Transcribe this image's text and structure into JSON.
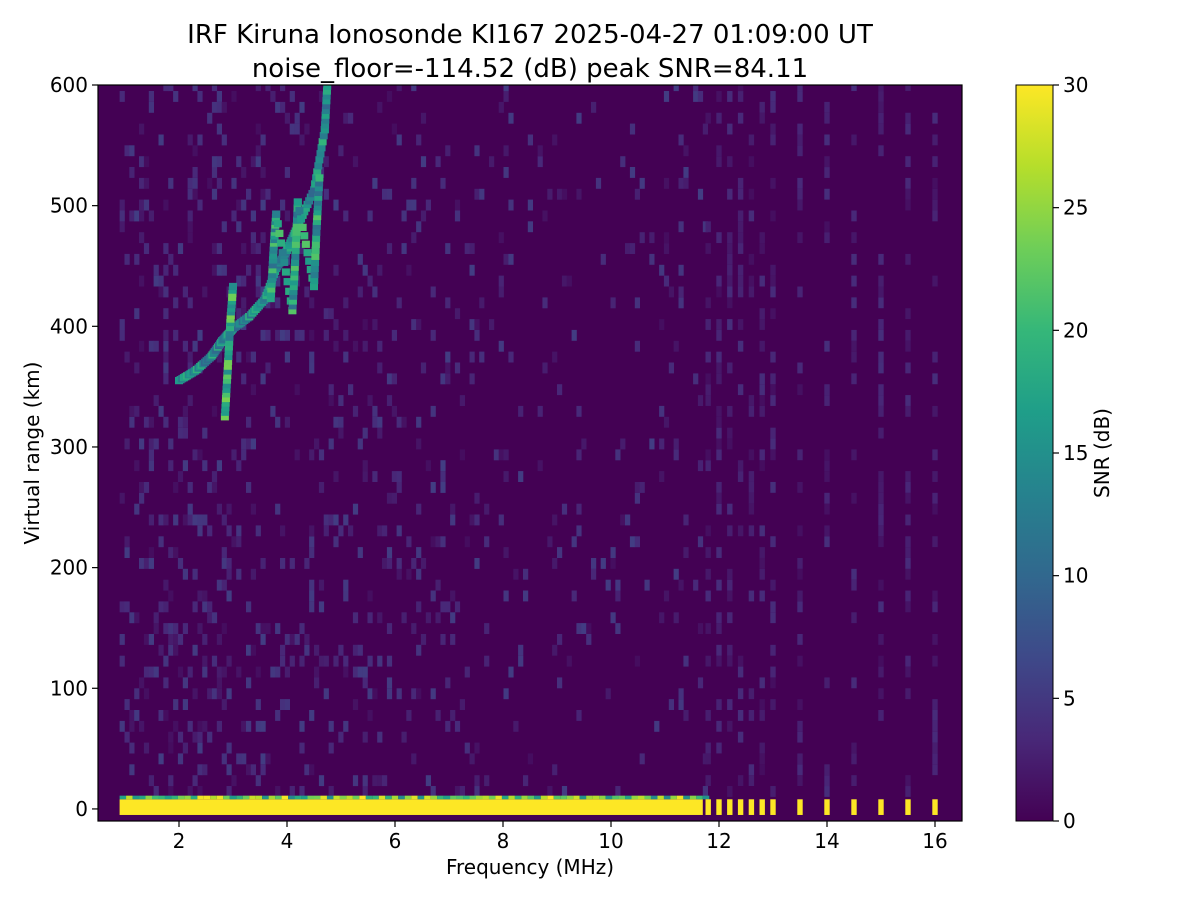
{
  "chart_data": {
    "type": "heatmap",
    "title": [
      "IRF Kiruna Ionosonde KI167 2025-04-27 01:09:00  UT",
      "noise_floor=-114.52 (dB) peak SNR=84.11"
    ],
    "xlabel": "Frequency (MHz)",
    "ylabel": "Virtual range (km)",
    "xlim": [
      0.5,
      16.5
    ],
    "ylim": [
      -10,
      600
    ],
    "xticks": [
      2,
      4,
      6,
      8,
      10,
      12,
      14,
      16
    ],
    "yticks": [
      0,
      100,
      200,
      300,
      400,
      500,
      600
    ],
    "colorbar": {
      "label": "SNR (dB)",
      "range": [
        0,
        30
      ],
      "ticks": [
        0,
        5,
        10,
        15,
        20,
        25,
        30
      ],
      "colormap": "viridis",
      "stops": [
        "#440154",
        "#482878",
        "#3e4989",
        "#31688e",
        "#26828e",
        "#1f9e89",
        "#35b779",
        "#6ece58",
        "#b5de2b",
        "#fde725"
      ]
    },
    "frequency_coverage_mhz": [
      0.9,
      16.3
    ],
    "ground_echo_band": {
      "range_km": [
        -5,
        8
      ],
      "snr_db": 30,
      "continuous_until_mhz": 11.7
    },
    "sparse_frequencies_mhz": [
      11.8,
      12.0,
      12.2,
      12.4,
      12.6,
      12.8,
      13.0,
      13.5,
      14.0,
      14.5,
      15.0,
      15.5,
      16.0
    ],
    "echo_traces": [
      {
        "points": [
          [
            2.0,
            352
          ],
          [
            2.3,
            360
          ],
          [
            2.6,
            372
          ],
          [
            2.8,
            385
          ],
          [
            3.0,
            395
          ],
          [
            3.3,
            405
          ],
          [
            3.6,
            420
          ],
          [
            3.8,
            445
          ],
          [
            4.0,
            460
          ],
          [
            4.2,
            480
          ],
          [
            4.5,
            510
          ],
          [
            4.7,
            560
          ],
          [
            4.75,
            600
          ]
        ],
        "snr_db": 18
      },
      {
        "points": [
          [
            2.85,
            322
          ],
          [
            2.9,
            360
          ],
          [
            2.95,
            400
          ],
          [
            3.0,
            430
          ]
        ],
        "snr_db": 22
      },
      {
        "points": [
          [
            3.7,
            420
          ],
          [
            3.75,
            460
          ],
          [
            3.8,
            490
          ],
          [
            4.1,
            410
          ],
          [
            4.15,
            450
          ],
          [
            4.2,
            500
          ],
          [
            4.5,
            430
          ],
          [
            4.55,
            480
          ],
          [
            4.6,
            520
          ]
        ],
        "snr_db": 20
      }
    ]
  }
}
